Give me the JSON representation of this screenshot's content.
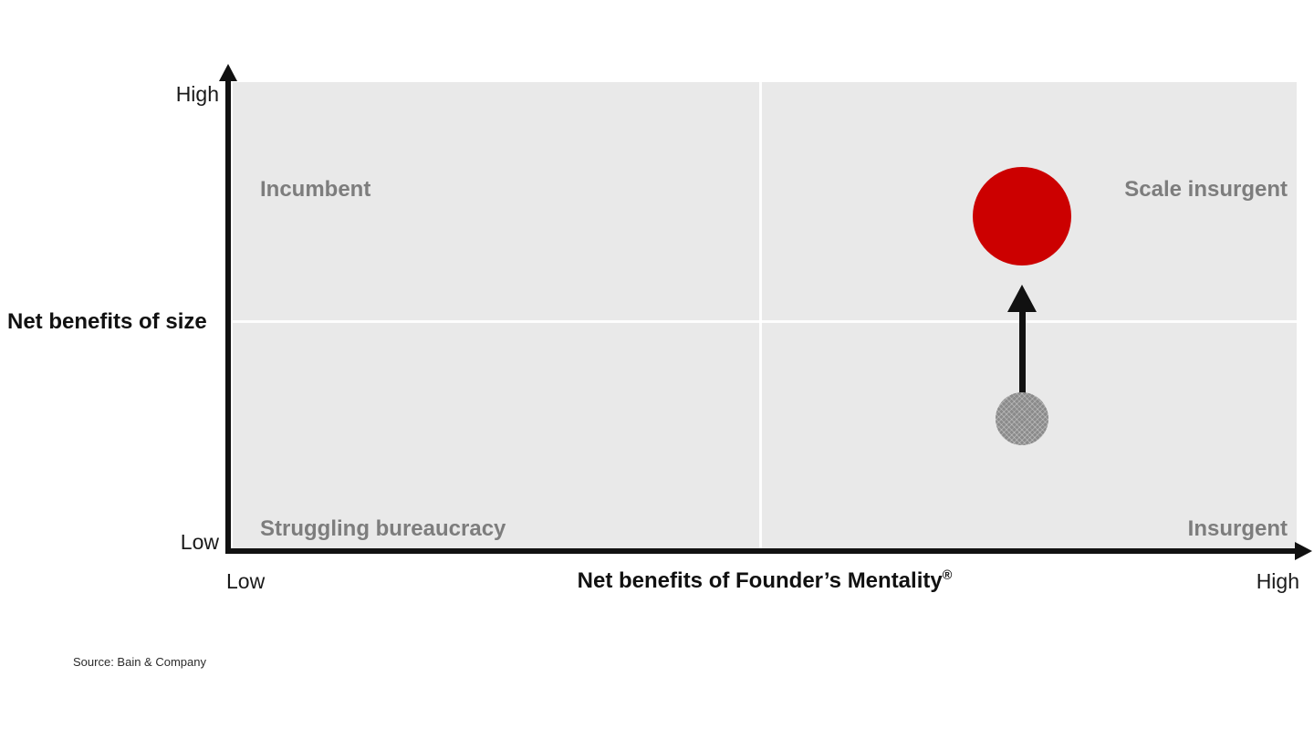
{
  "axes": {
    "y_title": "Net benefits of size",
    "y_tick_high": "High",
    "y_tick_low": "Low",
    "x_tick_low": "Low",
    "x_tick_high": "High",
    "x_title": "Net benefits of Founder’s Mentality",
    "x_title_registered": "®"
  },
  "quadrants": {
    "top_left": "Incumbent",
    "top_right": "Scale insurgent",
    "bottom_left": "Struggling bureaucracy",
    "bottom_right": "Insurgent"
  },
  "source": "Source: Bain & Company",
  "colors": {
    "plot_background": "#e9e9e9",
    "quadrant_label": "#7d7d7d",
    "axis": "#111111",
    "scale_insurgent_dot": "#cc0000",
    "insurgent_dot": "#8a8a8a",
    "arrow": "#111111"
  },
  "chart_data": {
    "type": "scatter",
    "title": "",
    "xlabel": "Net benefits of Founder’s Mentality®",
    "ylabel": "Net benefits of size",
    "x_axis_ticks": [
      "Low",
      "High"
    ],
    "y_axis_ticks": [
      "Low",
      "High"
    ],
    "grid": "white quadrant midlines at x=0.5 and y=0.5",
    "legend": "none",
    "quadrant_labels": {
      "top_left": "Incumbent",
      "top_right": "Scale insurgent",
      "bottom_left": "Struggling bureaucracy",
      "bottom_right": "Insurgent"
    },
    "points": [
      {
        "id": "current-position",
        "quadrant": "Insurgent",
        "x": 0.74,
        "y": 0.28,
        "color": "#8a8a8a",
        "relative_size": "small",
        "fill_pattern": "crosshatch"
      },
      {
        "id": "target-position",
        "quadrant": "Scale insurgent",
        "x": 0.74,
        "y": 0.71,
        "color": "#cc0000",
        "relative_size": "large",
        "fill_pattern": "solid"
      }
    ],
    "annotations": [
      {
        "type": "arrow",
        "direction": "up",
        "from_point": "current-position",
        "to_point": "target-position",
        "color": "#111111"
      }
    ]
  }
}
